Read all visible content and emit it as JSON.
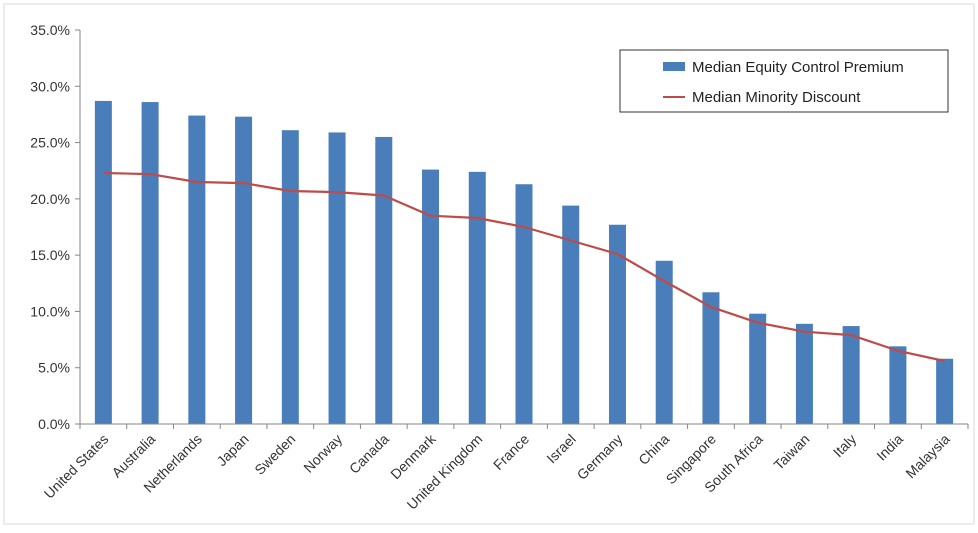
{
  "chart_data": {
    "type": "bar",
    "categories": [
      "United States",
      "Australia",
      "Netherlands",
      "Japan",
      "Sweden",
      "Norway",
      "Canada",
      "Denmark",
      "United Kingdom",
      "France",
      "Israel",
      "Germany",
      "China",
      "Singapore",
      "South Africa",
      "Taiwan",
      "Italy",
      "India",
      "Malaysia"
    ],
    "series": [
      {
        "name": "Median Equity Control Premium",
        "type": "bar",
        "color": "#4a7ebb",
        "values": [
          28.7,
          28.6,
          27.4,
          27.3,
          26.1,
          25.9,
          25.5,
          22.6,
          22.4,
          21.3,
          19.4,
          17.7,
          14.5,
          11.7,
          9.8,
          8.9,
          8.7,
          6.9,
          5.8
        ]
      },
      {
        "name": "Median Minority Discount",
        "type": "line",
        "color": "#be4b48",
        "values": [
          22.3,
          22.2,
          21.5,
          21.4,
          20.7,
          20.6,
          20.3,
          18.5,
          18.3,
          17.5,
          16.3,
          15.1,
          12.7,
          10.4,
          9.0,
          8.2,
          7.9,
          6.5,
          5.6
        ]
      }
    ],
    "ylim": [
      0,
      35
    ],
    "yticks": [
      0,
      5,
      10,
      15,
      20,
      25,
      30,
      35
    ],
    "ytick_labels": [
      "0.0%",
      "5.0%",
      "10.0%",
      "15.0%",
      "20.0%",
      "25.0%",
      "30.0%",
      "35.0%"
    ],
    "y_unit": "%",
    "grid": false,
    "legend_position": "top-right",
    "plot_background": "#ffffff",
    "axis_color": "#868686"
  }
}
